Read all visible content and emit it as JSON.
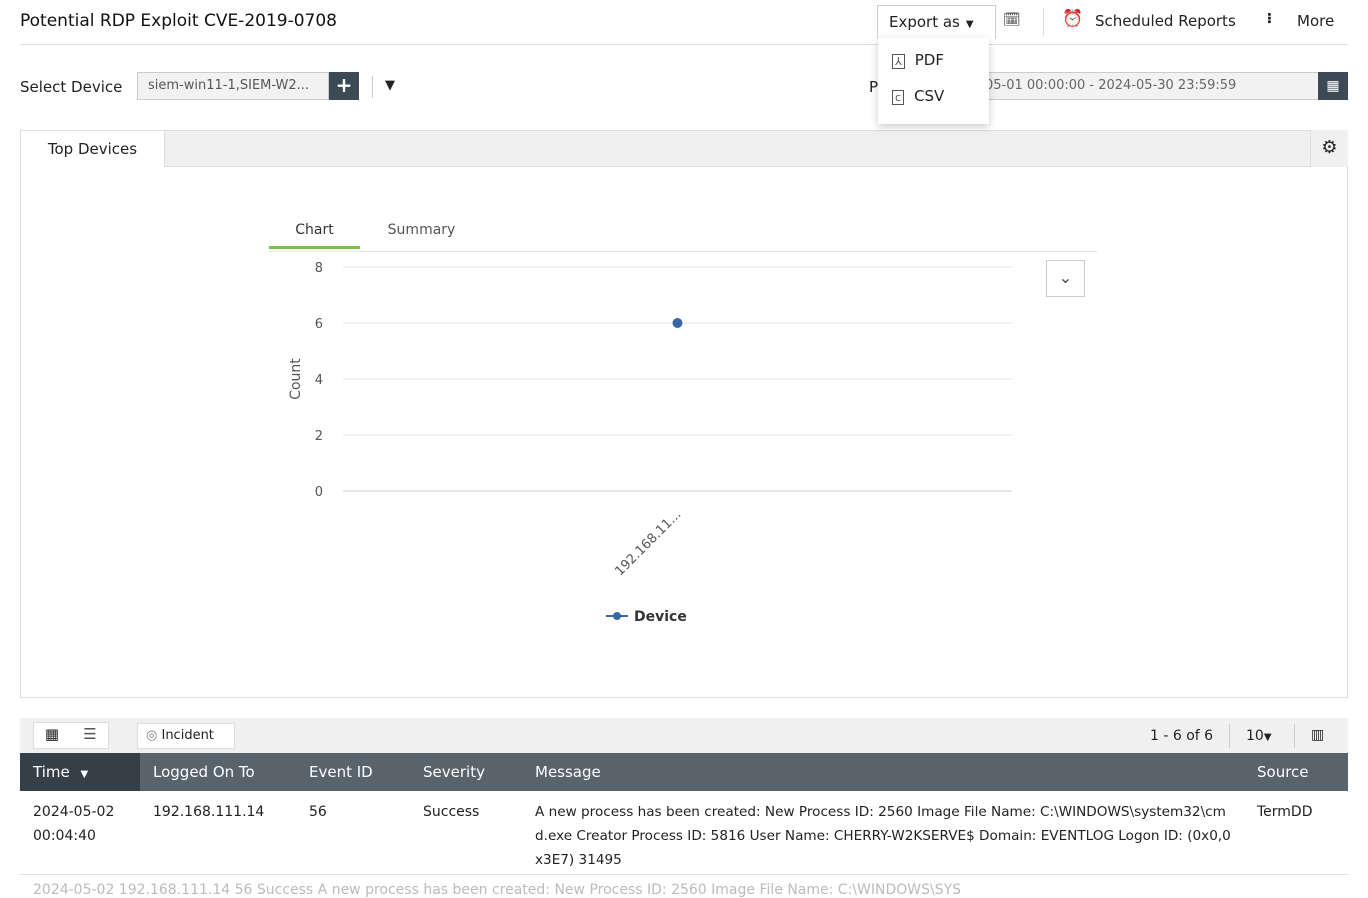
{
  "header": {
    "title": "Potential RDP Exploit CVE-2019-0708",
    "export_label": "Export as",
    "scheduled_reports": "Scheduled Reports",
    "more": "More"
  },
  "export_menu": {
    "items": [
      {
        "label": "PDF",
        "icon": "pdf-file-icon"
      },
      {
        "label": "CSV",
        "icon": "csv-file-icon"
      }
    ]
  },
  "filters": {
    "select_device_label": "Select Device",
    "device_value": "siem-win11-1,SIEM-W2...",
    "period_label": "P",
    "period_value": "05-01 00:00:00 - 2024-05-30 23:59:59"
  },
  "panel": {
    "tab": "Top Devices",
    "chart_tabs": [
      "Chart",
      "Summary"
    ]
  },
  "chart_data": {
    "type": "line",
    "categories": [
      "192.168.11..."
    ],
    "series": [
      {
        "name": "Device",
        "values": [
          6
        ],
        "color": "#3a66a8"
      }
    ],
    "ylabel": "Count",
    "ylim": [
      0,
      8
    ],
    "yticks": [
      0,
      2,
      4,
      6,
      8
    ],
    "grid": true,
    "legend": "bottom"
  },
  "table": {
    "toolbar": {
      "incident": "Incident",
      "pager": "1 - 6 of 6",
      "page_size": "10"
    },
    "columns": [
      "Time",
      "Logged On To",
      "Event ID",
      "Severity",
      "Message",
      "Source"
    ],
    "rows": [
      {
        "time": "2024-05-02 00:04:40",
        "logged_on_to": "192.168.111.14",
        "event_id": "56",
        "severity": "Success",
        "message": "A new process has been created: New Process ID: 2560 Image File Name: C:\\WINDOWS\\system32\\cmd.exe Creator Process ID: 5816 User Name: CHERRY-W2KSERVE$ Domain: EVENTLOG Logon ID: (0x0,0x3E7) 31495",
        "source": "TermDD"
      }
    ],
    "partial_row": "2024-05-02   192.168.111.14   56   Success   A new process has been created: New Process ID: 2560 Image File Name: C:\\WINDOWS\\SYS"
  }
}
